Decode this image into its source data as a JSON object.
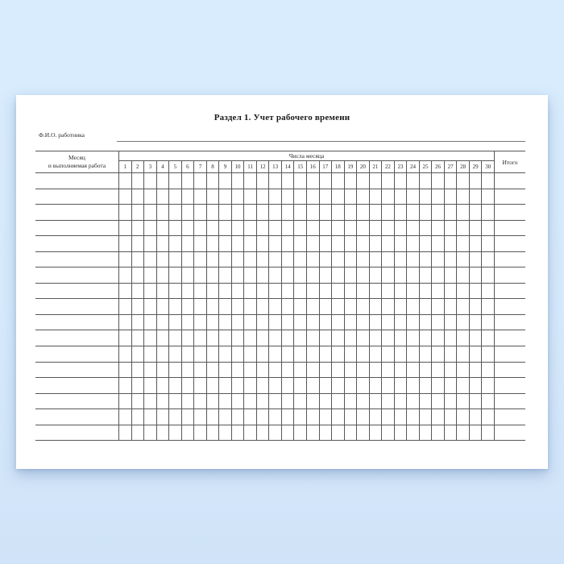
{
  "colors": {
    "background_top": "#d8ecfd",
    "background_bottom": "#d0e3f8",
    "paper": "#ffffff",
    "grid_line": "#575757"
  },
  "document": {
    "title": "Раздел 1. Учет рабочего времени",
    "employee_name_label": "Ф.И.О. работника",
    "employee_name_value": ""
  },
  "table": {
    "month_header_line1": "Месяц",
    "month_header_line2": "и выполняемая работа",
    "days_group_header": "Числа месяца",
    "total_header": "Итого",
    "day_numbers": [
      "1",
      "2",
      "3",
      "4",
      "5",
      "6",
      "7",
      "8",
      "9",
      "10",
      "11",
      "12",
      "13",
      "14",
      "15",
      "16",
      "17",
      "18",
      "19",
      "20",
      "21",
      "22",
      "23",
      "24",
      "25",
      "26",
      "27",
      "28",
      "29",
      "30"
    ],
    "body_row_count": 17
  }
}
